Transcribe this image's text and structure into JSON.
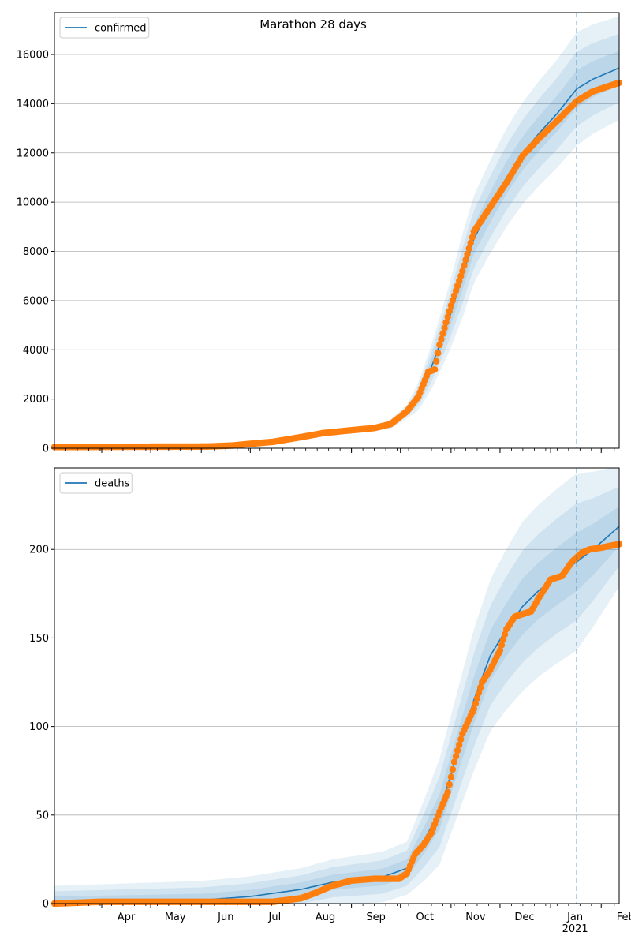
{
  "figure": {
    "title": "Marathon 28 days"
  },
  "colors": {
    "model": "#1f77b4",
    "observed": "#ff7f0e",
    "band": "#1f77b4",
    "grid": "#b0b0b0",
    "forecast_line": "#1f77b4"
  },
  "chart_data": [
    {
      "type": "line",
      "panel": "top",
      "legend": [
        "confirmed"
      ],
      "legend_position": "upper-left",
      "title": "Marathon 28 days",
      "grid": "horizontal",
      "x_range": [
        "2020-03-03",
        "2021-02-12"
      ],
      "ylim": [
        0,
        17700
      ],
      "y_ticks": [
        0,
        2000,
        4000,
        6000,
        8000,
        10000,
        12000,
        14000,
        16000
      ],
      "forecast_start": "2021-01-17",
      "model": [
        [
          "2020-03-03",
          60
        ],
        [
          "2020-06-20",
          100
        ],
        [
          "2020-07-15",
          250
        ],
        [
          "2020-08-05",
          520
        ],
        [
          "2020-08-25",
          720
        ],
        [
          "2020-09-15",
          820
        ],
        [
          "2020-09-25",
          980
        ],
        [
          "2020-10-05",
          1500
        ],
        [
          "2020-10-12",
          2100
        ],
        [
          "2020-10-20",
          3300
        ],
        [
          "2020-10-30",
          5100
        ],
        [
          "2020-11-08",
          7000
        ],
        [
          "2020-11-15",
          8500
        ],
        [
          "2020-11-25",
          9800
        ],
        [
          "2020-12-05",
          11000
        ],
        [
          "2020-12-15",
          12000
        ],
        [
          "2020-12-25",
          12800
        ],
        [
          "2021-01-05",
          13600
        ],
        [
          "2021-01-17",
          14600
        ],
        [
          "2021-01-27",
          15000
        ],
        [
          "2021-02-12",
          15450
        ]
      ],
      "band_half_width": [
        [
          "2020-03-03",
          30
        ],
        [
          "2020-09-15",
          100
        ],
        [
          "2020-10-05",
          280
        ],
        [
          "2020-10-20",
          900
        ],
        [
          "2020-11-08",
          1700
        ],
        [
          "2020-12-05",
          2000
        ],
        [
          "2021-01-05",
          2200
        ],
        [
          "2021-01-17",
          2300
        ],
        [
          "2021-02-12",
          2100
        ]
      ],
      "observed": [
        [
          "2020-03-03",
          50
        ],
        [
          "2020-06-05",
          70
        ],
        [
          "2020-06-20",
          110
        ],
        [
          "2020-07-01",
          180
        ],
        [
          "2020-07-15",
          260
        ],
        [
          "2020-08-01",
          450
        ],
        [
          "2020-08-15",
          620
        ],
        [
          "2020-09-01",
          730
        ],
        [
          "2020-09-15",
          820
        ],
        [
          "2020-09-25",
          980
        ],
        [
          "2020-10-05",
          1500
        ],
        [
          "2020-10-12",
          2100
        ],
        [
          "2020-10-18",
          3100
        ],
        [
          "2020-10-22",
          3200
        ],
        [
          "2020-10-25",
          4200
        ],
        [
          "2020-11-01",
          5800
        ],
        [
          "2020-11-08",
          7200
        ],
        [
          "2020-11-15",
          8800
        ],
        [
          "2020-11-25",
          9800
        ],
        [
          "2020-12-05",
          10800
        ],
        [
          "2020-12-15",
          11900
        ],
        [
          "2020-12-25",
          12600
        ],
        [
          "2021-01-05",
          13300
        ],
        [
          "2021-01-17",
          14100
        ],
        [
          "2021-01-27",
          14500
        ],
        [
          "2021-02-12",
          14850
        ]
      ]
    },
    {
      "type": "line",
      "panel": "bottom",
      "legend": [
        "deaths"
      ],
      "legend_position": "upper-left",
      "grid": "horizontal",
      "x_range": [
        "2020-03-03",
        "2021-02-12"
      ],
      "ylim": [
        0,
        246
      ],
      "y_ticks": [
        0,
        50,
        100,
        150,
        200
      ],
      "x_tick_labels": [
        [
          "2020-04-01",
          "Apr"
        ],
        [
          "2020-05-01",
          "May"
        ],
        [
          "2020-06-01",
          "Jun"
        ],
        [
          "2020-07-01",
          "Jul"
        ],
        [
          "2020-08-01",
          "Aug"
        ],
        [
          "2020-09-01",
          "Sep"
        ],
        [
          "2020-10-01",
          "Oct"
        ],
        [
          "2020-11-01",
          "Nov"
        ],
        [
          "2020-12-01",
          "Dec"
        ],
        [
          "2021-01-01",
          "Jan\n2021"
        ],
        [
          "2021-02-01",
          "Feb"
        ]
      ],
      "forecast_start": "2021-01-17",
      "model": [
        [
          "2020-03-03",
          1
        ],
        [
          "2020-06-01",
          2
        ],
        [
          "2020-07-01",
          4
        ],
        [
          "2020-08-01",
          8
        ],
        [
          "2020-08-20",
          12
        ],
        [
          "2020-09-20",
          15
        ],
        [
          "2020-10-05",
          20
        ],
        [
          "2020-10-15",
          35
        ],
        [
          "2020-10-25",
          52
        ],
        [
          "2020-11-05",
          85
        ],
        [
          "2020-11-15",
          115
        ],
        [
          "2020-11-25",
          140
        ],
        [
          "2020-12-05",
          155
        ],
        [
          "2020-12-15",
          168
        ],
        [
          "2020-12-25",
          177
        ],
        [
          "2021-01-05",
          185
        ],
        [
          "2021-01-17",
          193
        ],
        [
          "2021-01-27",
          200
        ],
        [
          "2021-02-12",
          213
        ]
      ],
      "band_half_width": [
        [
          "2020-03-03",
          9
        ],
        [
          "2020-08-01",
          12
        ],
        [
          "2020-10-05",
          15
        ],
        [
          "2020-10-25",
          30
        ],
        [
          "2020-11-15",
          40
        ],
        [
          "2020-12-15",
          48
        ],
        [
          "2021-01-17",
          50
        ],
        [
          "2021-02-12",
          34
        ]
      ],
      "observed": [
        [
          "2020-03-03",
          0
        ],
        [
          "2020-04-01",
          1
        ],
        [
          "2020-07-15",
          1
        ],
        [
          "2020-08-01",
          3
        ],
        [
          "2020-08-10",
          6
        ],
        [
          "2020-08-20",
          10
        ],
        [
          "2020-09-01",
          13
        ],
        [
          "2020-09-15",
          14
        ],
        [
          "2020-09-30",
          14
        ],
        [
          "2020-10-05",
          17
        ],
        [
          "2020-10-10",
          28
        ],
        [
          "2020-10-15",
          33
        ],
        [
          "2020-10-20",
          40
        ],
        [
          "2020-10-25",
          52
        ],
        [
          "2020-10-30",
          63
        ],
        [
          "2020-11-03",
          80
        ],
        [
          "2020-11-08",
          96
        ],
        [
          "2020-11-15",
          110
        ],
        [
          "2020-11-20",
          125
        ],
        [
          "2020-11-25",
          132
        ],
        [
          "2020-12-01",
          143
        ],
        [
          "2020-12-05",
          155
        ],
        [
          "2020-12-10",
          162
        ],
        [
          "2020-12-20",
          165
        ],
        [
          "2020-12-25",
          173
        ],
        [
          "2021-01-01",
          183
        ],
        [
          "2021-01-08",
          185
        ],
        [
          "2021-01-14",
          193
        ],
        [
          "2021-01-20",
          198
        ],
        [
          "2021-01-25",
          200
        ],
        [
          "2021-02-01",
          201
        ],
        [
          "2021-02-12",
          203
        ]
      ]
    }
  ]
}
